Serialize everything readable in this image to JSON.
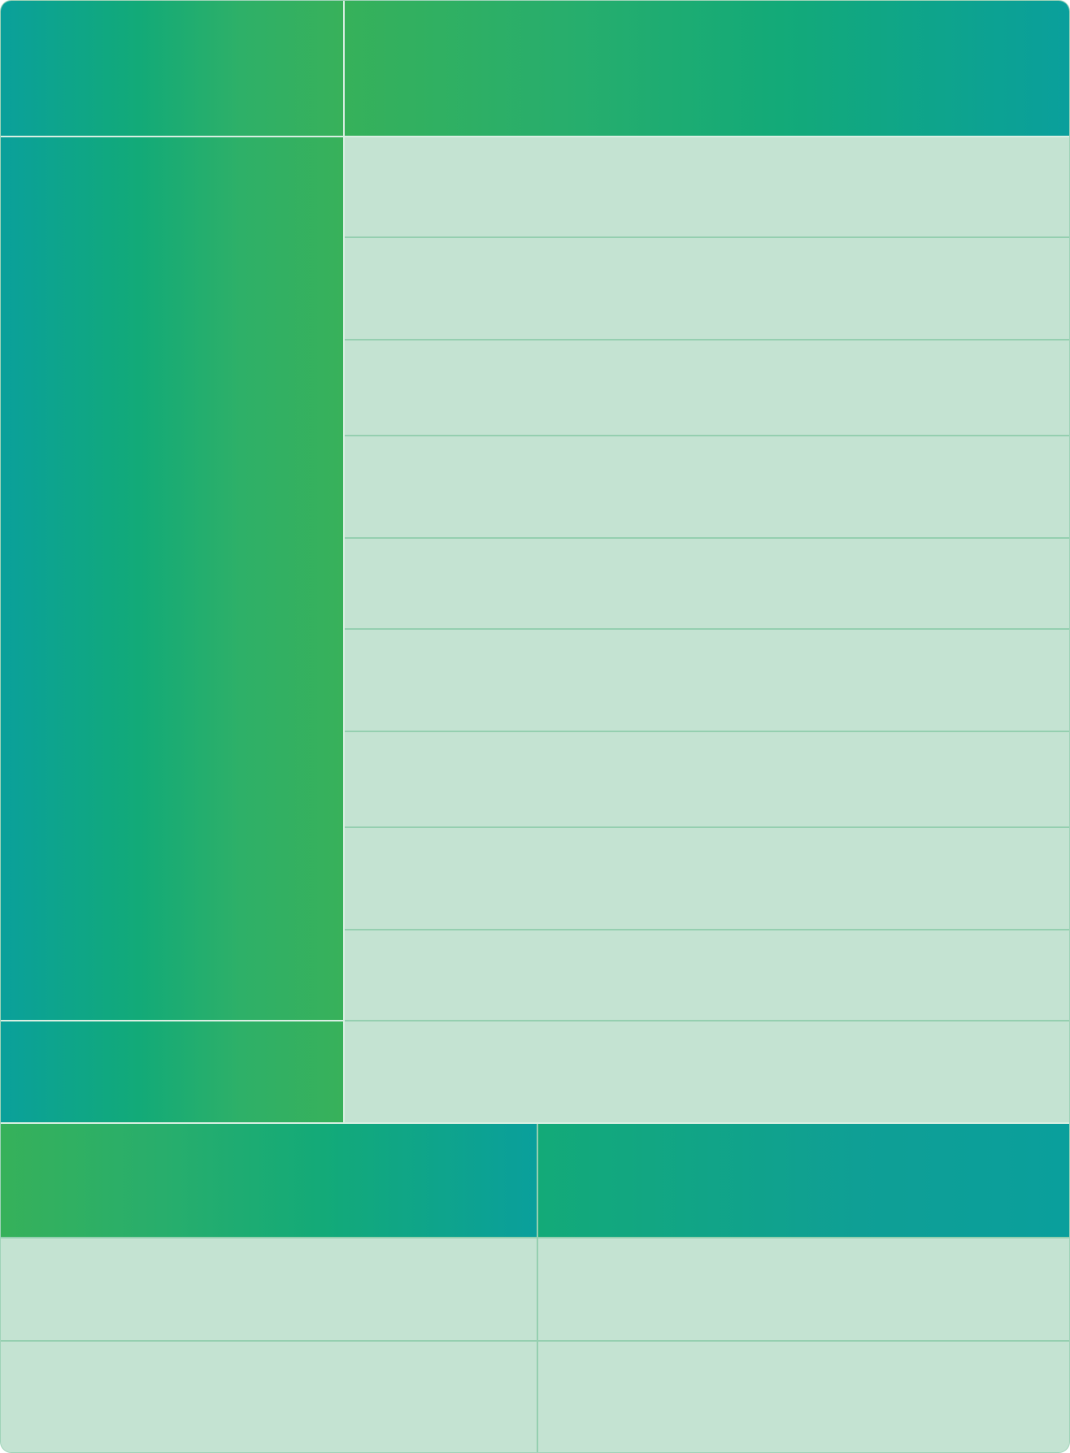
{
  "table_upper": {
    "header": {
      "col1": "",
      "col2": ""
    },
    "group_label": "",
    "rows": [
      "",
      "",
      "",
      "",
      "",
      "",
      "",
      "",
      ""
    ],
    "footer_label": "",
    "footer_value": ""
  },
  "table_lower": {
    "header": {
      "col1": "",
      "col2": ""
    },
    "rows": [
      {
        "col1": "",
        "col2": ""
      },
      {
        "col1": "",
        "col2": ""
      }
    ]
  },
  "colors": {
    "teal": "#0a9f9c",
    "green": "#38b15a",
    "mint": "#c4e3d2",
    "line": "#95cfb0"
  }
}
